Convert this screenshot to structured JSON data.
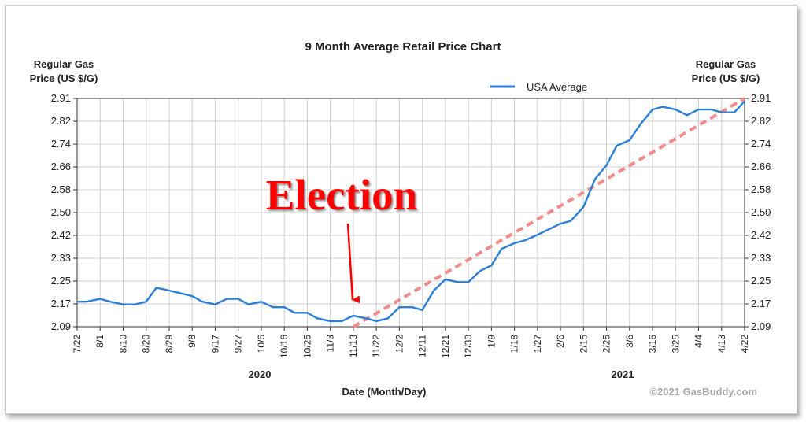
{
  "chart_data": {
    "type": "line",
    "title": "9 Month Average Retail Price Chart",
    "ylabel_left": [
      "Regular Gas",
      "Price (US $/G)"
    ],
    "ylabel_right": [
      "Regular Gas",
      "Price (US $/G)"
    ],
    "xlabel": "Date (Month/Day)",
    "year_labels": [
      "2020",
      "2021"
    ],
    "credit": "©2021 GasBuddy.com",
    "annotation": "Election",
    "legend": {
      "position": "top-right",
      "label": "USA Average"
    },
    "grid": true,
    "ylim": [
      2.09,
      2.91
    ],
    "yticks": [
      "2.91",
      "2.82",
      "2.74",
      "2.66",
      "2.58",
      "2.50",
      "2.42",
      "2.33",
      "2.25",
      "2.17",
      "2.09"
    ],
    "xticks": [
      "7/22",
      "8/1",
      "8/10",
      "8/20",
      "8/29",
      "9/8",
      "9/17",
      "9/27",
      "10/6",
      "10/16",
      "10/25",
      "11/3",
      "11/13",
      "11/22",
      "12/2",
      "12/11",
      "12/21",
      "12/30",
      "1/9",
      "1/18",
      "1/27",
      "2/6",
      "2/15",
      "2/25",
      "3/6",
      "3/16",
      "3/25",
      "4/4",
      "4/13",
      "4/22"
    ],
    "colors": {
      "series": "#2b7fd6",
      "trend": "#f28b8b",
      "annotation": "#ff0000"
    },
    "series": [
      {
        "name": "USA Average",
        "x": [
          "7/22",
          "7/26",
          "8/1",
          "8/5",
          "8/10",
          "8/15",
          "8/20",
          "8/24",
          "8/29",
          "9/3",
          "9/8",
          "9/12",
          "9/17",
          "9/22",
          "9/27",
          "10/1",
          "10/6",
          "10/11",
          "10/16",
          "10/20",
          "10/25",
          "10/29",
          "11/3",
          "11/8",
          "11/13",
          "11/18",
          "11/22",
          "11/27",
          "12/2",
          "12/7",
          "12/11",
          "12/16",
          "12/21",
          "12/26",
          "12/30",
          "1/4",
          "1/9",
          "1/13",
          "1/18",
          "1/22",
          "1/27",
          "2/1",
          "2/6",
          "2/10",
          "2/15",
          "2/20",
          "2/25",
          "3/1",
          "3/6",
          "3/11",
          "3/16",
          "3/20",
          "3/25",
          "3/30",
          "4/4",
          "4/9",
          "4/13",
          "4/18",
          "4/22"
        ],
        "values": [
          2.18,
          2.18,
          2.19,
          2.18,
          2.17,
          2.17,
          2.18,
          2.23,
          2.22,
          2.21,
          2.2,
          2.18,
          2.17,
          2.19,
          2.19,
          2.17,
          2.18,
          2.16,
          2.16,
          2.14,
          2.14,
          2.12,
          2.11,
          2.11,
          2.13,
          2.12,
          2.11,
          2.12,
          2.16,
          2.16,
          2.15,
          2.22,
          2.26,
          2.25,
          2.25,
          2.29,
          2.31,
          2.37,
          2.39,
          2.4,
          2.42,
          2.44,
          2.46,
          2.47,
          2.52,
          2.62,
          2.67,
          2.74,
          2.76,
          2.82,
          2.87,
          2.88,
          2.87,
          2.85,
          2.87,
          2.87,
          2.86,
          2.86,
          2.9
        ]
      },
      {
        "name": "",
        "style": "dashed-trend",
        "x": [
          "11/13",
          "4/22"
        ],
        "values": [
          2.09,
          2.91
        ]
      }
    ]
  }
}
